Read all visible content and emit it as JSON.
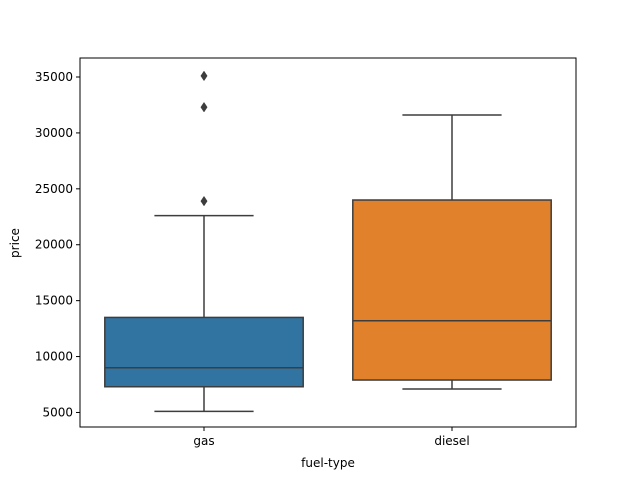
{
  "chart_data": {
    "type": "box",
    "xlabel": "fuel-type",
    "ylabel": "price",
    "ylim": [
      3700,
      36700
    ],
    "yticks": [
      5000,
      10000,
      15000,
      20000,
      25000,
      30000,
      35000
    ],
    "grid": false,
    "categories": [
      "gas",
      "diesel"
    ],
    "boxes": [
      {
        "category": "gas",
        "color": "#3274a1",
        "whisker_low": 5100,
        "q1": 7300,
        "median": 9000,
        "q3": 13500,
        "whisker_high": 22600,
        "outliers": [
          23900,
          32300,
          35100
        ]
      },
      {
        "category": "diesel",
        "color": "#e1812c",
        "whisker_low": 7100,
        "q1": 7900,
        "median": 13200,
        "q3": 24000,
        "whisker_high": 31600,
        "outliers": []
      }
    ]
  }
}
